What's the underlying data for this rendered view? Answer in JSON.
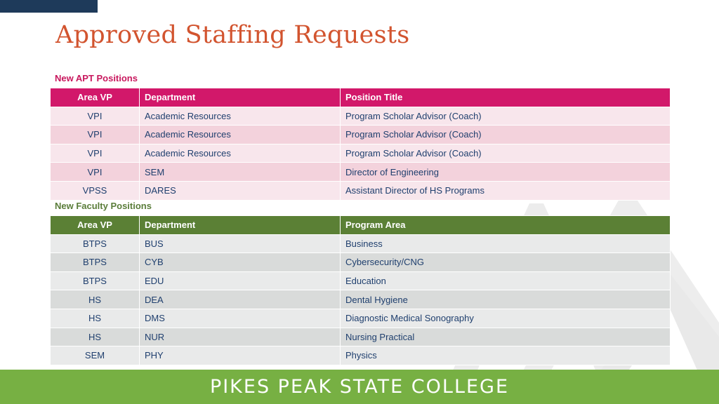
{
  "title": "Approved Staffing Requests",
  "apt": {
    "label": "New APT Positions",
    "headers": [
      "Area VP",
      "Department",
      "Position Title"
    ],
    "rows": [
      [
        "VPI",
        "Academic Resources",
        "Program Scholar Advisor (Coach)"
      ],
      [
        "VPI",
        "Academic Resources",
        "Program Scholar Advisor (Coach)"
      ],
      [
        "VPI",
        "Academic Resources",
        "Program Scholar Advisor (Coach)"
      ],
      [
        "VPI",
        "SEM",
        "Director of Engineering"
      ],
      [
        "VPSS",
        "DARES",
        "Assistant Director of HS Programs"
      ]
    ]
  },
  "faculty": {
    "label": "New Faculty Positions",
    "headers": [
      "Area VP",
      "Department",
      "Program Area"
    ],
    "rows": [
      [
        "BTPS",
        "BUS",
        "Business"
      ],
      [
        "BTPS",
        "CYB",
        "Cybersecurity/CNG"
      ],
      [
        "BTPS",
        "EDU",
        "Education"
      ],
      [
        "HS",
        "DEA",
        "Dental Hygiene"
      ],
      [
        "HS",
        "DMS",
        "Diagnostic Medical Sonography"
      ],
      [
        "HS",
        "NUR",
        "Nursing Practical"
      ],
      [
        "SEM",
        "PHY",
        "Physics"
      ]
    ]
  },
  "footer": {
    "college_name": "PIKES PEAK STATE COLLEGE"
  },
  "colors": {
    "title": "#d2542f",
    "apt_accent": "#d2186a",
    "faculty_accent": "#5b8035",
    "footer_bar": "#77b043",
    "top_bar": "#1e3a5a"
  }
}
